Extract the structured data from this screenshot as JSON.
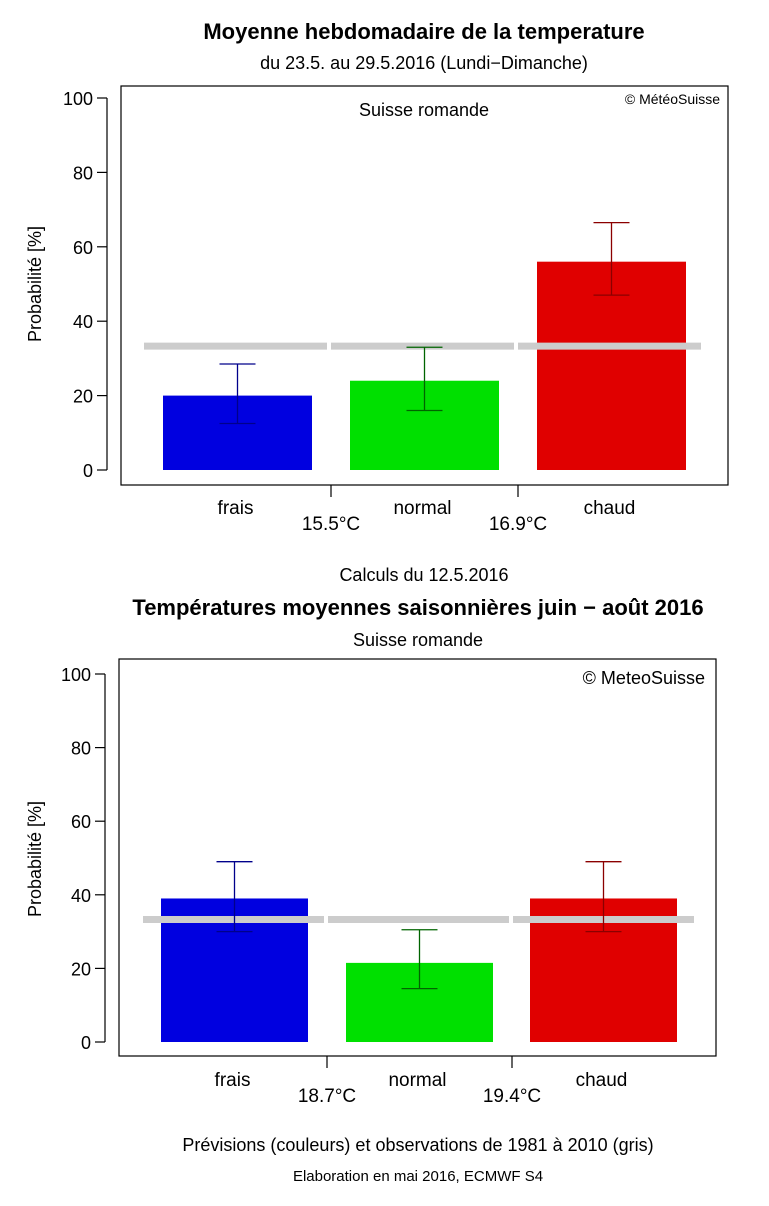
{
  "chart_data": [
    {
      "type": "bar",
      "title": "Moyenne hebdomadaire de la temperature",
      "subtitle": "du 23.5. au 29.5.2016 (Lundi−Dimanche)",
      "region": "Suisse romande",
      "copyright": "© MétéoSuisse",
      "ylabel": "Probabilité [%]",
      "ylim": [
        0,
        100
      ],
      "yticks": [
        "0",
        "20",
        "40",
        "60",
        "80",
        "100"
      ],
      "categories": [
        "frais",
        "normal",
        "chaud"
      ],
      "values": [
        20,
        24,
        56
      ],
      "error_low": [
        12.5,
        16,
        47
      ],
      "error_high": [
        28.5,
        33,
        66.5
      ],
      "bar_colors": [
        "#0000e0",
        "#00e000",
        "#e00000"
      ],
      "error_colors": [
        "#00008b",
        "#006400",
        "#8b0000"
      ],
      "climatology": 33.3,
      "climatology_color": "#cccccc",
      "thresholds": [
        "15.5°C",
        "16.9°C"
      ],
      "footer": "Calculs du 12.5.2016"
    },
    {
      "type": "bar",
      "title": "Températures moyennes saisonnières juin − août 2016",
      "subtitle": "Suisse romande",
      "copyright": "© MeteoSuisse",
      "ylabel": "Probabilité [%]",
      "ylim": [
        0,
        100
      ],
      "yticks": [
        "0",
        "20",
        "40",
        "60",
        "80",
        "100"
      ],
      "categories": [
        "frais",
        "normal",
        "chaud"
      ],
      "values": [
        39,
        21.5,
        39
      ],
      "error_low": [
        30,
        14.5,
        30
      ],
      "error_high": [
        49,
        30.5,
        49
      ],
      "bar_colors": [
        "#0000e0",
        "#00e000",
        "#e00000"
      ],
      "error_colors": [
        "#00008b",
        "#006400",
        "#8b0000"
      ],
      "climatology": 33.3,
      "climatology_color": "#cccccc",
      "thresholds": [
        "18.7°C",
        "19.4°C"
      ],
      "footer": "Prévisions (couleurs) et observations de 1981 à 2010 (gris)",
      "footer2": "Elaboration en mai 2016, ECMWF S4"
    }
  ]
}
